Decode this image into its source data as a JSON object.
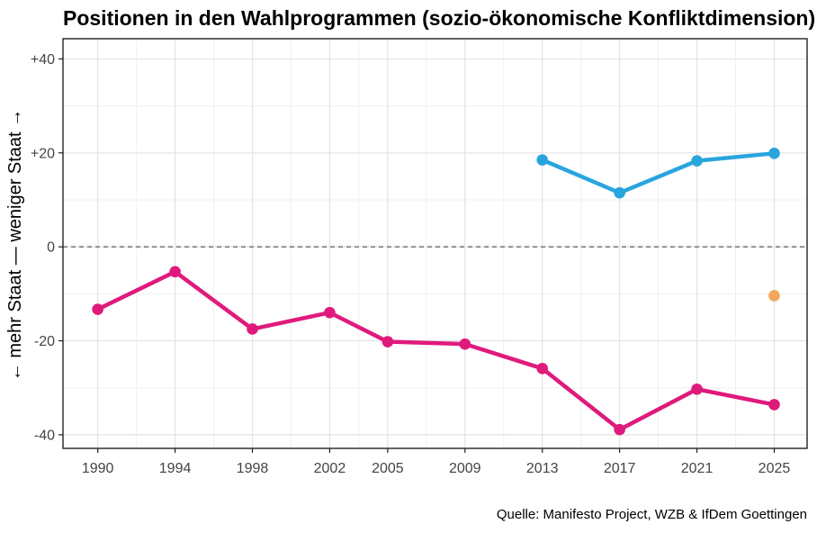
{
  "chart_data": {
    "type": "line",
    "title": "Positionen in den Wahlprogrammen (sozio-ökonomische Konfliktdimension)",
    "xlabel": "",
    "ylabel": "← mehr Staat — weniger Staat →",
    "caption": "Quelle: Manifesto Project, WZB & IfDem Goettingen",
    "legend": "none",
    "grid": {
      "major_color": "#E3E3E3",
      "minor_color": "#F0F0F0"
    },
    "x_range": [
      1988.2,
      2026.7
    ],
    "y_range": [
      -42.9,
      44.3
    ],
    "x_ticks": [
      {
        "v": 1990,
        "label": "1990"
      },
      {
        "v": 1994,
        "label": "1994"
      },
      {
        "v": 1998,
        "label": "1998"
      },
      {
        "v": 2002,
        "label": "2002"
      },
      {
        "v": 2005,
        "label": "2005"
      },
      {
        "v": 2009,
        "label": "2009"
      },
      {
        "v": 2013,
        "label": "2013"
      },
      {
        "v": 2017,
        "label": "2017"
      },
      {
        "v": 2021,
        "label": "2021"
      },
      {
        "v": 2025,
        "label": "2025"
      }
    ],
    "y_ticks": [
      {
        "v": 40,
        "label": "+40"
      },
      {
        "v": 20,
        "label": "+20"
      },
      {
        "v": 0,
        "label": "0"
      },
      {
        "v": -20,
        "label": "-20"
      },
      {
        "v": -40,
        "label": "-40"
      }
    ],
    "x_minor": [
      1992,
      1996,
      2000,
      2003.5,
      2007,
      2011,
      2015,
      2019,
      2023
    ],
    "y_minor": [
      30,
      10,
      -10,
      -30
    ],
    "reference_line": {
      "y": 0,
      "style": "dashed",
      "color": "#5A5A5A"
    },
    "series": [
      {
        "name": "series-magenta",
        "type": "line+points",
        "color": "#E01A7D",
        "x": [
          1990,
          1994,
          1998,
          2002,
          2005,
          2009,
          2013,
          2017,
          2021,
          2025
        ],
        "y": [
          -13.3,
          -5.3,
          -17.5,
          -14.0,
          -20.2,
          -20.7,
          -25.9,
          -38.9,
          -30.3,
          -33.6
        ]
      },
      {
        "name": "series-blue",
        "type": "line+points",
        "color": "#29A5DE",
        "x": [
          2013,
          2017,
          2021,
          2025
        ],
        "y": [
          18.5,
          11.5,
          18.3,
          19.9
        ]
      },
      {
        "name": "series-orange",
        "type": "points",
        "color": "#F1A65C",
        "x": [
          2025
        ],
        "y": [
          -10.4
        ]
      }
    ]
  }
}
